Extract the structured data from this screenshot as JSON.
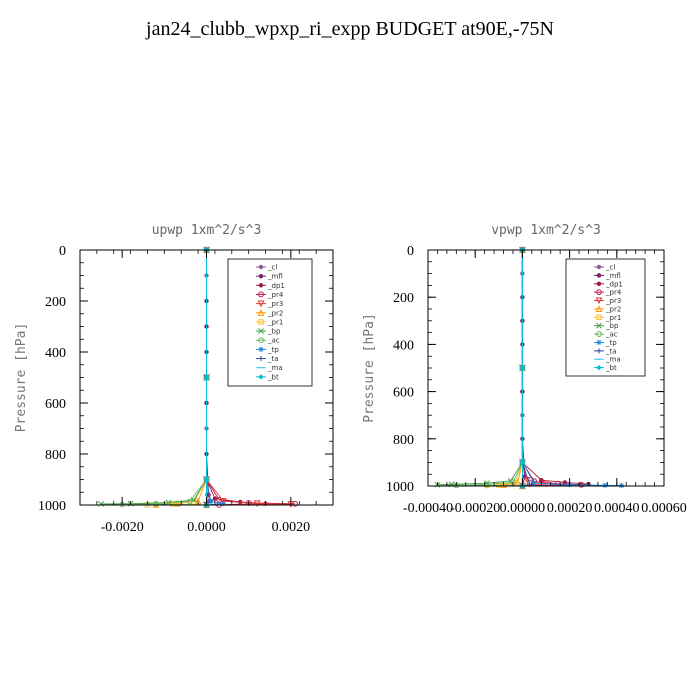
{
  "page": {
    "title": "jan24_clubb_wpxp_ri_expp  BUDGET at90E,-75N"
  },
  "chart_data": [
    {
      "type": "line",
      "title": "upwp   1xm^2/s^3",
      "ylabel": "Pressure [hPa]",
      "xlim": [
        -0.003,
        0.003
      ],
      "ylim": [
        0,
        1000
      ],
      "y_inverted": true,
      "x_ticks": [
        "-0.0020",
        "0.0000",
        "0.0020"
      ],
      "x_tick_values": [
        -0.002,
        0.0,
        0.002
      ],
      "y_ticks": [
        "0",
        "200",
        "400",
        "600",
        "800",
        "1000"
      ],
      "y_tick_values": [
        0,
        200,
        400,
        600,
        800,
        1000
      ],
      "legend_position": "top-right",
      "series": [
        {
          "name": "_cl",
          "color": "#8a5a9a",
          "marker": "dot",
          "points": [
            [
              0,
              0
            ],
            [
              0,
              100
            ],
            [
              0,
              300
            ],
            [
              0,
              500
            ],
            [
              0,
              700
            ],
            [
              0,
              900
            ],
            [
              2e-05,
              960
            ],
            [
              5e-05,
              985
            ],
            [
              0,
              1000
            ]
          ]
        },
        {
          "name": "_mfl",
          "color": "#7b1f6e",
          "marker": "dot",
          "points": [
            [
              0,
              0
            ],
            [
              0,
              200
            ],
            [
              0,
              400
            ],
            [
              0,
              600
            ],
            [
              0,
              800
            ],
            [
              5e-05,
              960
            ],
            [
              0.0001,
              985
            ],
            [
              0,
              1000
            ]
          ]
        },
        {
          "name": "_dp1",
          "color": "#9b1b3a",
          "marker": "dot",
          "points": [
            [
              0,
              0
            ],
            [
              0,
              300
            ],
            [
              0,
              600
            ],
            [
              0,
              900
            ],
            [
              0.0002,
              975
            ],
            [
              0.0008,
              988
            ],
            [
              0.0014,
              995
            ],
            [
              0,
              1000
            ]
          ]
        },
        {
          "name": "_pr4",
          "color": "#c2185b",
          "marker": "circle",
          "points": [
            [
              0,
              0
            ],
            [
              0,
              500
            ],
            [
              0,
              900
            ],
            [
              0.0003,
              980
            ],
            [
              0.001,
              992
            ],
            [
              0.0021,
              995
            ],
            [
              0.0003,
              1000
            ]
          ]
        },
        {
          "name": "_pr3",
          "color": "#e53935",
          "marker": "triangle-down",
          "points": [
            [
              0,
              0
            ],
            [
              0,
              500
            ],
            [
              0,
              900
            ],
            [
              0.0004,
              985
            ],
            [
              0.0012,
              994
            ],
            [
              0.002,
              997
            ],
            [
              0,
              1000
            ]
          ]
        },
        {
          "name": "_pr2",
          "color": "#ff9800",
          "marker": "triangle-up",
          "points": [
            [
              0,
              0
            ],
            [
              0,
              500
            ],
            [
              0,
              900
            ],
            [
              -0.0002,
              985
            ],
            [
              -0.0007,
              994
            ],
            [
              -0.0012,
              998
            ],
            [
              0,
              1000
            ]
          ]
        },
        {
          "name": "_pr1",
          "color": "#fbc02d",
          "marker": "square",
          "points": [
            [
              0,
              0
            ],
            [
              0,
              500
            ],
            [
              0,
              900
            ],
            [
              -0.0003,
              988
            ],
            [
              -0.0008,
              996
            ],
            [
              -0.0014,
              999
            ],
            [
              0,
              1000
            ]
          ]
        },
        {
          "name": "_bp",
          "color": "#43a047",
          "marker": "cross",
          "points": [
            [
              0,
              0
            ],
            [
              0,
              500
            ],
            [
              0,
              900
            ],
            [
              -0.0003,
              980
            ],
            [
              -0.0009,
              990
            ],
            [
              -0.0018,
              995
            ],
            [
              -0.0025,
              996
            ],
            [
              0,
              1000
            ]
          ]
        },
        {
          "name": "_ac",
          "color": "#66bb6a",
          "marker": "circle",
          "points": [
            [
              0,
              0
            ],
            [
              0,
              500
            ],
            [
              0,
              900
            ],
            [
              -0.0004,
              986
            ],
            [
              -0.0012,
              995
            ],
            [
              -0.002,
              998
            ],
            [
              0,
              1000
            ]
          ]
        },
        {
          "name": "_tp",
          "color": "#1e88e5",
          "marker": "star",
          "points": [
            [
              0,
              0
            ],
            [
              0,
              500
            ],
            [
              0,
              900
            ],
            [
              0.0001,
              985
            ],
            [
              0.0004,
              995
            ],
            [
              0,
              1000
            ]
          ]
        },
        {
          "name": "_ta",
          "color": "#3949ab",
          "marker": "plus",
          "points": [
            [
              0,
              0
            ],
            [
              0,
              500
            ],
            [
              0,
              900
            ],
            [
              0,
              990
            ],
            [
              0,
              1000
            ]
          ]
        },
        {
          "name": "_ma",
          "color": "#4fc3f7",
          "marker": "dash",
          "points": [
            [
              0,
              0
            ],
            [
              0,
              500
            ],
            [
              0,
              900
            ],
            [
              0,
              1000
            ]
          ]
        },
        {
          "name": "_bt",
          "color": "#00bcd4",
          "marker": "diamond",
          "points": [
            [
              0,
              0
            ],
            [
              0,
              500
            ],
            [
              0,
              900
            ],
            [
              0,
              1000
            ]
          ]
        }
      ]
    },
    {
      "type": "line",
      "title": "vpwp   1xm^2/s^3",
      "ylabel": "Pressure [hPa]",
      "xlim": [
        -0.0004,
        0.0006
      ],
      "ylim": [
        0,
        1000
      ],
      "y_inverted": true,
      "x_ticks": [
        "-0.00040",
        "-0.00020",
        "0.00000",
        "0.00020",
        "0.00040",
        "0.00060"
      ],
      "x_tick_values": [
        -0.0004,
        -0.0002,
        0.0,
        0.0002,
        0.0004,
        0.0006
      ],
      "y_ticks": [
        "0",
        "200",
        "400",
        "600",
        "800",
        "1000"
      ],
      "y_tick_values": [
        0,
        200,
        400,
        600,
        800,
        1000
      ],
      "legend_position": "top-right",
      "series": [
        {
          "name": "_cl",
          "color": "#8a5a9a",
          "marker": "dot",
          "points": [
            [
              0,
              0
            ],
            [
              0,
              100
            ],
            [
              0,
              300
            ],
            [
              0,
              500
            ],
            [
              0,
              700
            ],
            [
              0,
              900
            ],
            [
              1e-05,
              960
            ],
            [
              0,
              1000
            ]
          ]
        },
        {
          "name": "_mfl",
          "color": "#7b1f6e",
          "marker": "dot",
          "points": [
            [
              0,
              0
            ],
            [
              0,
              200
            ],
            [
              0,
              400
            ],
            [
              0,
              600
            ],
            [
              0,
              800
            ],
            [
              1e-05,
              960
            ],
            [
              0,
              1000
            ]
          ]
        },
        {
          "name": "_dp1",
          "color": "#9b1b3a",
          "marker": "dot",
          "points": [
            [
              0,
              0
            ],
            [
              0,
              300
            ],
            [
              0,
              600
            ],
            [
              0,
              900
            ],
            [
              8e-05,
              975
            ],
            [
              0.00018,
              985
            ],
            [
              0.00028,
              992
            ],
            [
              0,
              1000
            ]
          ]
        },
        {
          "name": "_pr4",
          "color": "#c2185b",
          "marker": "circle",
          "points": [
            [
              0,
              0
            ],
            [
              0,
              500
            ],
            [
              0,
              900
            ],
            [
              5e-05,
              980
            ],
            [
              0.00015,
              990
            ],
            [
              0.00025,
              995
            ],
            [
              0,
              1000
            ]
          ]
        },
        {
          "name": "_pr3",
          "color": "#e53935",
          "marker": "triangle-down",
          "points": [
            [
              0,
              0
            ],
            [
              0,
              500
            ],
            [
              0,
              900
            ],
            [
              2e-05,
              975
            ],
            [
              0.0001,
              990
            ],
            [
              0,
              1000
            ]
          ]
        },
        {
          "name": "_pr2",
          "color": "#ff9800",
          "marker": "triangle-up",
          "points": [
            [
              0,
              0
            ],
            [
              0,
              500
            ],
            [
              0,
              900
            ],
            [
              -2e-05,
              985
            ],
            [
              -8e-05,
              995
            ],
            [
              0,
              1000
            ]
          ]
        },
        {
          "name": "_pr1",
          "color": "#fbc02d",
          "marker": "square",
          "points": [
            [
              0,
              0
            ],
            [
              0,
              500
            ],
            [
              0,
              900
            ],
            [
              -3e-05,
              985
            ],
            [
              -0.0001,
              995
            ],
            [
              -0.00015,
              998
            ],
            [
              0,
              1000
            ]
          ]
        },
        {
          "name": "_bp",
          "color": "#43a047",
          "marker": "cross",
          "points": [
            [
              0,
              0
            ],
            [
              0,
              500
            ],
            [
              0,
              900
            ],
            [
              -5e-05,
              978
            ],
            [
              -0.00015,
              988
            ],
            [
              -0.0003,
              993
            ],
            [
              -0.00036,
              995
            ],
            [
              0,
              1000
            ]
          ]
        },
        {
          "name": "_ac",
          "color": "#66bb6a",
          "marker": "circle",
          "points": [
            [
              0,
              0
            ],
            [
              0,
              500
            ],
            [
              0,
              900
            ],
            [
              -4e-05,
              985
            ],
            [
              -0.00015,
              993
            ],
            [
              -0.00028,
              997
            ],
            [
              0,
              1000
            ]
          ]
        },
        {
          "name": "_tp",
          "color": "#1e88e5",
          "marker": "star",
          "points": [
            [
              0,
              0
            ],
            [
              0,
              500
            ],
            [
              0,
              900
            ],
            [
              5e-05,
              988
            ],
            [
              0.0002,
              995
            ],
            [
              0.00035,
              997
            ],
            [
              0.00042,
              998
            ],
            [
              0,
              1000
            ]
          ]
        },
        {
          "name": "_ta",
          "color": "#3949ab",
          "marker": "plus",
          "points": [
            [
              0,
              0
            ],
            [
              0,
              500
            ],
            [
              0,
              900
            ],
            [
              3e-05,
              992
            ],
            [
              0,
              1000
            ]
          ]
        },
        {
          "name": "_ma",
          "color": "#4fc3f7",
          "marker": "dash",
          "points": [
            [
              0,
              0
            ],
            [
              0,
              500
            ],
            [
              0,
              900
            ],
            [
              0,
              1000
            ]
          ]
        },
        {
          "name": "_bt",
          "color": "#00bcd4",
          "marker": "diamond",
          "points": [
            [
              0,
              0
            ],
            [
              0,
              500
            ],
            [
              0,
              900
            ],
            [
              0,
              1000
            ]
          ]
        }
      ]
    }
  ]
}
